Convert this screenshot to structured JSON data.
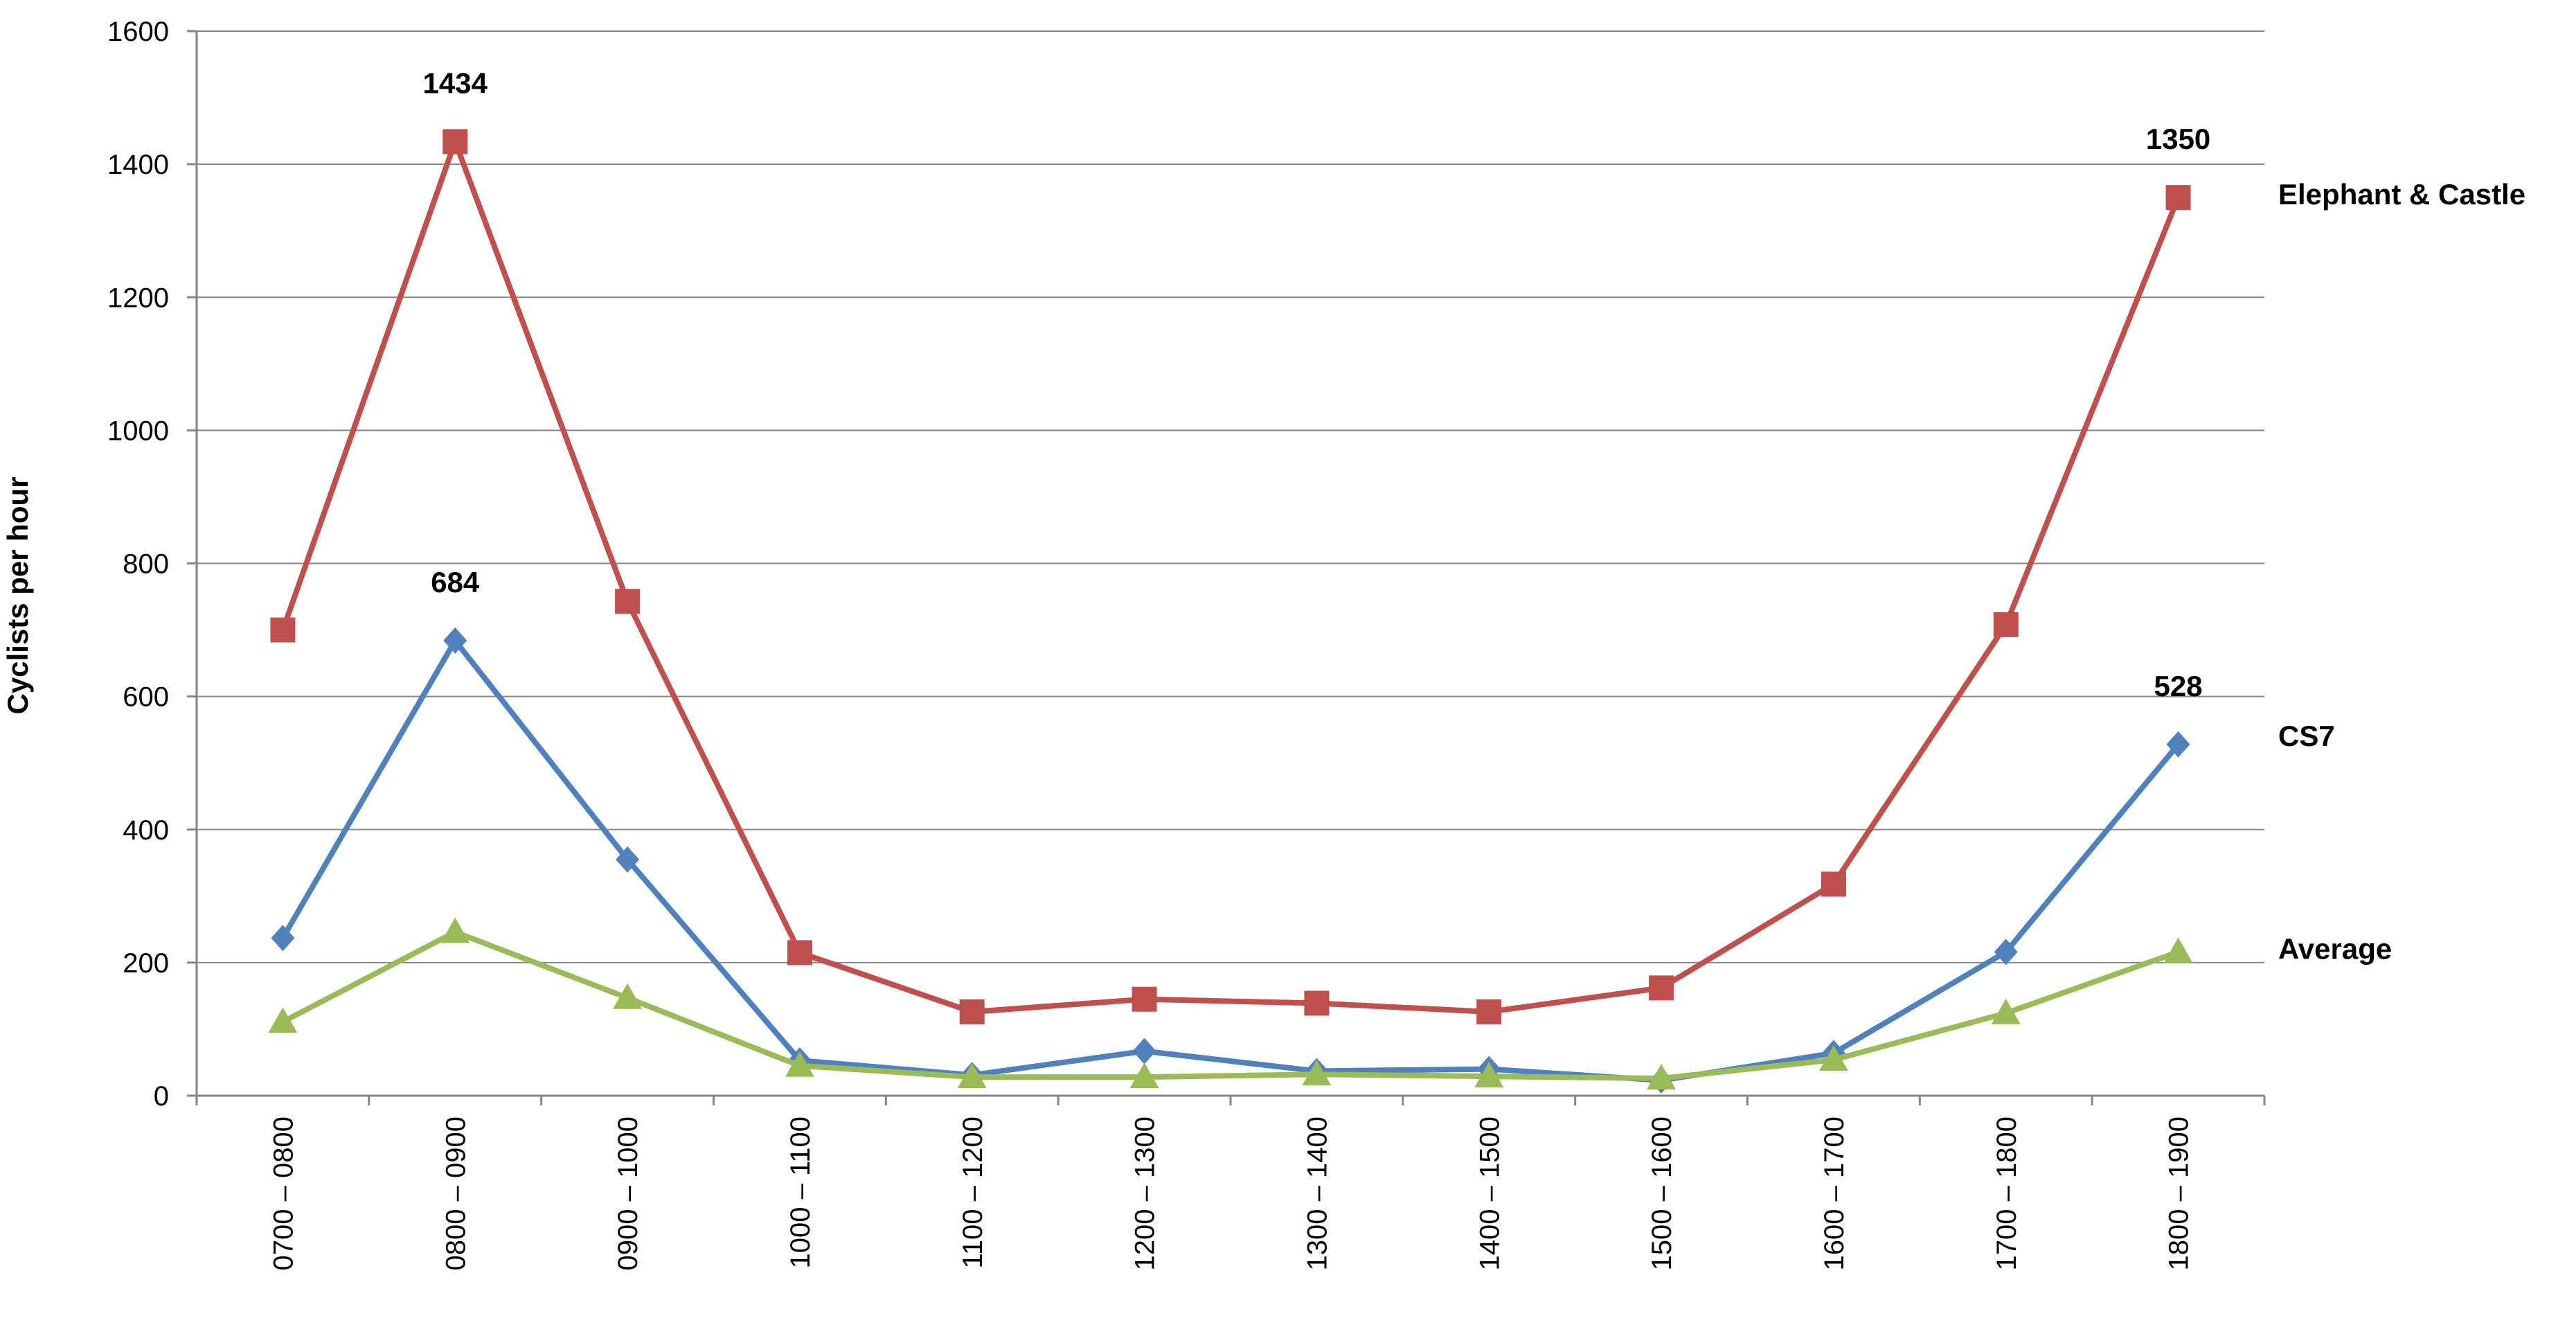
{
  "chart_data": {
    "type": "line",
    "title": "",
    "xlabel": "",
    "ylabel": "Cyclists per hour",
    "ylim": [
      0,
      1600
    ],
    "yticks": [
      0,
      200,
      400,
      600,
      800,
      1000,
      1200,
      1400,
      1600
    ],
    "grid": "horizontal",
    "legend": "inline-right",
    "categories": [
      "0700 – 0800",
      "0800 – 0900",
      "0900 – 1000",
      "1000 – 1100",
      "1100 – 1200",
      "1200 – 1300",
      "1300 – 1400",
      "1400 – 1500",
      "1500 – 1600",
      "1600 – 1700",
      "1700 – 1800",
      "1800 – 1900"
    ],
    "series": [
      {
        "name": "Elephant & Castle",
        "color": "#C0504D",
        "marker": "square",
        "values": [
          700,
          1434,
          743,
          215,
          126,
          145,
          139,
          126,
          162,
          318,
          708,
          1350
        ],
        "labels": [
          {
            "index": 1,
            "text": "1434"
          },
          {
            "index": 11,
            "text": "1350"
          }
        ]
      },
      {
        "name": "CS7",
        "color": "#4F81BD",
        "marker": "diamond",
        "values": [
          237,
          684,
          355,
          53,
          31,
          67,
          37,
          40,
          23,
          64,
          216,
          528
        ],
        "labels": [
          {
            "index": 1,
            "text": "684"
          },
          {
            "index": 11,
            "text": "528"
          }
        ]
      },
      {
        "name": "Average",
        "color": "#9BBB59",
        "marker": "triangle",
        "values": [
          111,
          246,
          147,
          45,
          28,
          28,
          32,
          29,
          26,
          54,
          124,
          216
        ],
        "labels": []
      }
    ]
  }
}
